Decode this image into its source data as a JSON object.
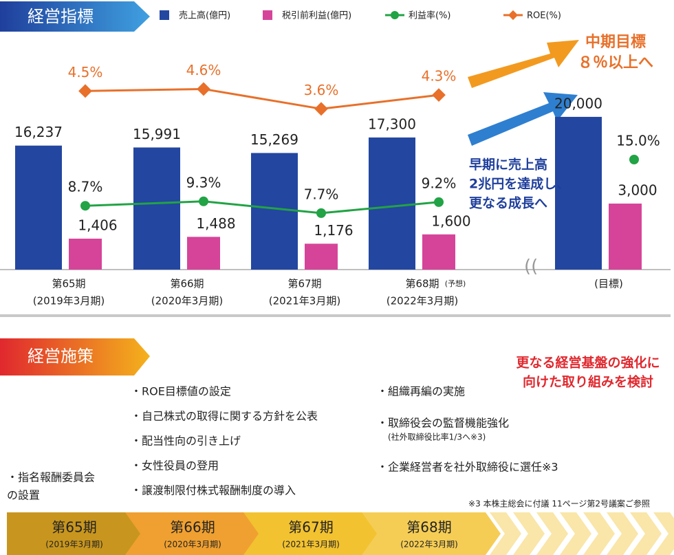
{
  "chart_data": {
    "type": "combo",
    "title": "経営指標",
    "categories": [
      "第65期",
      "第66期",
      "第67期",
      "第68期",
      "(目標)"
    ],
    "category_sublabels": [
      "(2019年3月期)",
      "(2020年3月期)",
      "(2021年3月期)",
      "(2022年3月期)",
      null
    ],
    "category_notes": [
      null,
      null,
      null,
      "(予想)",
      null
    ],
    "series": [
      {
        "name": "売上高(億円)",
        "type": "bar",
        "color": "#2346a0",
        "values": [
          16237,
          15991,
          15269,
          17300,
          20000
        ],
        "value_labels": [
          "16,237",
          "15,991",
          "15,269",
          "17,300",
          "20,000"
        ],
        "ylim": [
          0,
          31700
        ]
      },
      {
        "name": "税引前利益(億円)",
        "type": "bar",
        "color": "#d6449a",
        "values": [
          1406,
          1488,
          1176,
          1600,
          3000
        ],
        "value_labels": [
          "1,406",
          "1,488",
          "1,176",
          "1,600",
          "3,000"
        ],
        "ylim": [
          0,
          11000
        ]
      },
      {
        "name": "利益率(%)",
        "type": "line",
        "marker": "circle",
        "color": "#22a345",
        "values": [
          8.7,
          9.3,
          7.7,
          9.2,
          15.0
        ],
        "value_labels": [
          "8.7%",
          "9.3%",
          "7.7%",
          "9.2%",
          "15.0%"
        ],
        "ylim": [
          0,
          33
        ]
      },
      {
        "name": "ROE(%)",
        "type": "line",
        "marker": "diamond",
        "color": "#e8702a",
        "values": [
          4.5,
          4.6,
          3.6,
          4.3,
          null
        ],
        "value_labels": [
          "4.5%",
          "4.6%",
          "3.6%",
          "4.3%",
          null
        ],
        "ylim": [
          -4.5,
          7.7
        ]
      }
    ],
    "annotations": {
      "roe_target": [
        "中期目標",
        "８％以上へ"
      ],
      "sales_target": [
        "早期に売上高",
        "2兆円を達成し、",
        "更なる成長へ"
      ]
    }
  },
  "policies": {
    "title": "経営施策",
    "note": [
      "更なる経営基盤の強化に",
      "向けた取り組みを検討"
    ],
    "groups": [
      [
        {
          "lines": [
            "・指名報酬委員会",
            "の設置"
          ]
        }
      ],
      [
        {
          "lines": [
            "・ROE目標値の設定"
          ]
        },
        {
          "lines": [
            "・自己株式の取得に関する方針を公表"
          ]
        },
        {
          "lines": [
            "・配当性向の引き上げ"
          ]
        },
        {
          "lines": [
            "・女性役員の登用"
          ]
        },
        {
          "lines": [
            "・譲渡制限付株式報酬制度の導入"
          ]
        }
      ],
      [
        {
          "lines": [
            "・組織再編の実施"
          ]
        },
        {
          "lines": [
            "・取締役会の監督機能強化"
          ],
          "sub": "(社外取締役比率1/3へ※3)"
        },
        {
          "lines": [
            "・企業経営者を社外取締役に選任※3"
          ]
        }
      ]
    ],
    "footnote": "※3 本株主総会に付議 11ページ第2号議案ご参照",
    "timeline": [
      {
        "label": "第65期",
        "period": "(2019年3月期)"
      },
      {
        "label": "第66期",
        "period": "(2020年3月期)"
      },
      {
        "label": "第67期",
        "period": "(2021年3月期)"
      },
      {
        "label": "第68期",
        "period": "(2022年3月期)"
      }
    ]
  }
}
